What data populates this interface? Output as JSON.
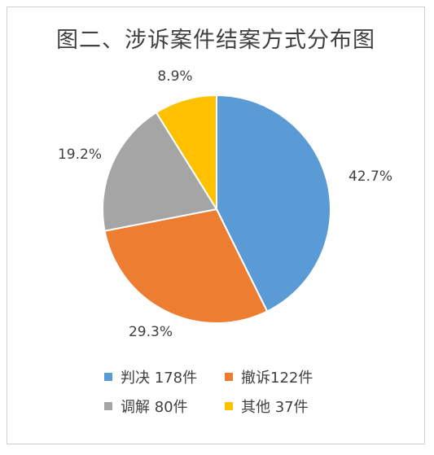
{
  "chart_data": {
    "type": "pie",
    "title": "图二、涉诉案件结案方式分布图",
    "categories": [
      "判决",
      "撤诉",
      "调解",
      "其他"
    ],
    "values": [
      178,
      122,
      80,
      37
    ],
    "percent_labels": [
      "42.7%",
      "29.3%",
      "19.2%",
      "8.9%"
    ],
    "legend_labels": [
      "判决 178件",
      "撤诉122件",
      "调解 80件",
      "其他 37件"
    ],
    "colors": [
      "#5B9BD5",
      "#ED7D31",
      "#A5A5A5",
      "#FFC000"
    ],
    "legend_position": "bottom"
  }
}
